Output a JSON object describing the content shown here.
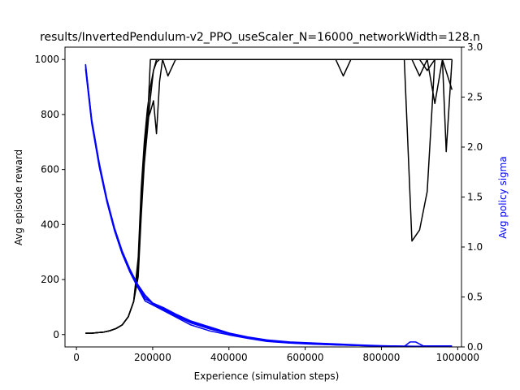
{
  "chart_data": {
    "type": "line",
    "title": "results/InvertedPendulum-v2_PPO_useScaler_N=16000_networkWidth=128.n",
    "xlabel": "Experience (simulation steps)",
    "ylabel": "Avg episode reward",
    "y2label": "Avg policy sigma",
    "xlim": [
      -30000,
      1010000
    ],
    "ylim": [
      -45,
      1045
    ],
    "y2lim": [
      0.0,
      3.0
    ],
    "xticks": [
      "0",
      "200000",
      "400000",
      "600000",
      "800000",
      "1000000"
    ],
    "yticks": [
      "0",
      "200",
      "400",
      "600",
      "800",
      "1000"
    ],
    "y2ticks": [
      "0.0",
      "0.5",
      "1.0",
      "1.5",
      "2.0",
      "2.5",
      "3.0"
    ],
    "colors": {
      "reward": "#000000",
      "sigma": "#0000ff"
    },
    "reward_series": [
      {
        "x": [
          24000,
          40000,
          56000,
          72000,
          88000,
          104000,
          120000,
          136000,
          150000,
          162000,
          170000,
          178000,
          186000,
          194000,
          202000,
          210000,
          218000,
          226000,
          240000,
          260000,
          300000,
          400000,
          500000,
          600000,
          700000,
          800000,
          860000,
          880000,
          900000,
          920000,
          940000,
          960000,
          985000
        ],
        "values": [
          5,
          5,
          7,
          9,
          14,
          22,
          35,
          65,
          120,
          280,
          530,
          700,
          820,
          900,
          960,
          990,
          1000,
          1000,
          1000,
          1000,
          1000,
          1000,
          1000,
          1000,
          1000,
          1000,
          1000,
          340,
          380,
          520,
          1000,
          1000,
          1000
        ]
      },
      {
        "x": [
          24000,
          40000,
          56000,
          72000,
          88000,
          104000,
          120000,
          136000,
          150000,
          162000,
          170000,
          178000,
          186000,
          194000,
          202000,
          210000,
          218000,
          226000,
          240000,
          260000,
          300000,
          400000,
          500000,
          600000,
          700000,
          800000,
          860000,
          880000,
          900000,
          920000,
          940000,
          960000,
          985000
        ],
        "values": [
          5,
          5,
          7,
          9,
          14,
          22,
          35,
          65,
          120,
          260,
          500,
          680,
          780,
          810,
          850,
          730,
          920,
          1000,
          940,
          1000,
          1000,
          1000,
          1000,
          1000,
          1000,
          1000,
          1000,
          1000,
          940,
          1000,
          840,
          1000,
          890
        ]
      },
      {
        "x": [
          24000,
          40000,
          56000,
          72000,
          88000,
          104000,
          120000,
          136000,
          150000,
          162000,
          170000,
          178000,
          186000,
          194000,
          202000,
          210000,
          218000,
          226000,
          240000,
          260000,
          300000,
          400000,
          500000,
          600000,
          680000,
          700000,
          720000,
          800000,
          860000,
          880000,
          900000,
          920000,
          940000,
          960000,
          985000
        ],
        "values": [
          5,
          5,
          7,
          9,
          14,
          22,
          35,
          65,
          120,
          230,
          460,
          640,
          760,
          1000,
          1000,
          1000,
          1000,
          1000,
          1000,
          1000,
          1000,
          1000,
          1000,
          1000,
          1000,
          940,
          1000,
          1000,
          1000,
          1000,
          1000,
          1000,
          1000,
          1000,
          1000
        ]
      },
      {
        "x": [
          24000,
          40000,
          56000,
          72000,
          88000,
          104000,
          120000,
          136000,
          150000,
          162000,
          170000,
          178000,
          186000,
          194000,
          202000,
          210000,
          218000,
          226000,
          240000,
          260000,
          300000,
          400000,
          500000,
          600000,
          700000,
          800000,
          860000,
          880000,
          900000,
          920000,
          940000,
          960000,
          970000,
          985000
        ],
        "values": [
          5,
          5,
          7,
          9,
          14,
          22,
          35,
          65,
          120,
          210,
          430,
          620,
          740,
          860,
          960,
          1000,
          1000,
          1000,
          1000,
          1000,
          1000,
          1000,
          1000,
          1000,
          1000,
          1000,
          1000,
          1000,
          1000,
          960,
          1000,
          1000,
          665,
          1000
        ]
      }
    ],
    "sigma_series": [
      {
        "x": [
          24000,
          40000,
          60000,
          80000,
          100000,
          120000,
          140000,
          160000,
          180000,
          200000,
          230000,
          260000,
          300000,
          350000,
          400000,
          450000,
          500000,
          560000,
          620000,
          680000,
          740000,
          800000,
          860000,
          875000,
          890000,
          910000,
          950000,
          985000
        ],
        "values": [
          2.83,
          2.28,
          1.84,
          1.48,
          1.19,
          0.96,
          0.78,
          0.63,
          0.52,
          0.44,
          0.38,
          0.32,
          0.25,
          0.19,
          0.13,
          0.09,
          0.06,
          0.045,
          0.035,
          0.025,
          0.015,
          0.01,
          0.005,
          0.05,
          0.05,
          0.01,
          0.01,
          0.01
        ]
      },
      {
        "x": [
          24000,
          40000,
          60000,
          80000,
          100000,
          120000,
          140000,
          160000,
          180000,
          200000,
          230000,
          260000,
          300000,
          350000,
          400000,
          450000,
          500000,
          560000,
          620000,
          680000,
          740000,
          800000,
          860000,
          920000,
          985000
        ],
        "values": [
          2.8,
          2.26,
          1.82,
          1.47,
          1.18,
          0.95,
          0.77,
          0.62,
          0.5,
          0.43,
          0.37,
          0.31,
          0.24,
          0.18,
          0.13,
          0.09,
          0.06,
          0.04,
          0.03,
          0.02,
          0.015,
          0.01,
          0.008,
          0.006,
          0.005
        ]
      },
      {
        "x": [
          24000,
          40000,
          60000,
          80000,
          100000,
          120000,
          140000,
          160000,
          180000,
          200000,
          230000,
          260000,
          300000,
          350000,
          400000,
          450000,
          500000,
          560000,
          620000,
          680000,
          740000,
          800000,
          860000,
          920000,
          985000
        ],
        "values": [
          2.78,
          2.24,
          1.8,
          1.45,
          1.16,
          0.93,
          0.75,
          0.6,
          0.46,
          0.42,
          0.36,
          0.3,
          0.22,
          0.16,
          0.12,
          0.085,
          0.055,
          0.038,
          0.028,
          0.02,
          0.014,
          0.009,
          0.006,
          0.005,
          0.004
        ]
      },
      {
        "x": [
          24000,
          40000,
          60000,
          80000,
          100000,
          120000,
          140000,
          160000,
          180000,
          200000,
          230000,
          260000,
          300000,
          350000,
          400000,
          450000,
          500000,
          560000,
          620000,
          680000,
          740000,
          800000,
          860000,
          920000,
          985000
        ],
        "values": [
          2.82,
          2.27,
          1.83,
          1.46,
          1.17,
          0.94,
          0.76,
          0.61,
          0.48,
          0.44,
          0.39,
          0.33,
          0.26,
          0.2,
          0.14,
          0.1,
          0.07,
          0.05,
          0.04,
          0.03,
          0.02,
          0.012,
          0.007,
          0.005,
          0.004
        ]
      }
    ]
  }
}
